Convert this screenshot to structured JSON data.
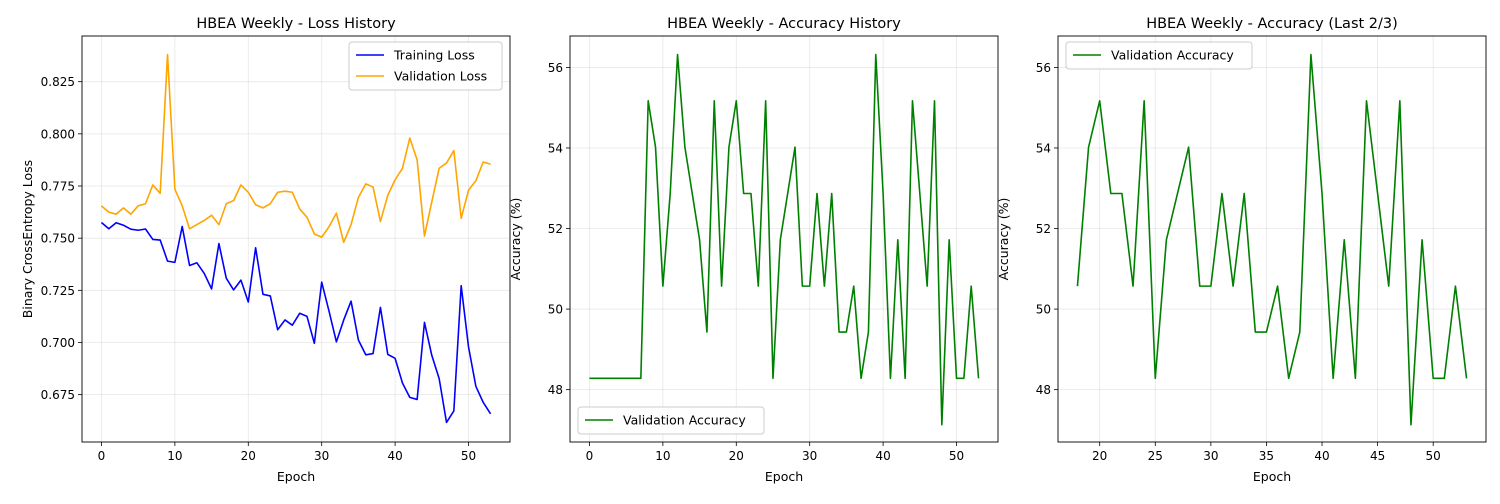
{
  "chart_data": [
    {
      "type": "line",
      "title": "HBEA Weekly - Loss History",
      "xlabel": "Epoch",
      "ylabel": "Binary CrossEntropy Loss",
      "xlim": [
        -2.65,
        55.65
      ],
      "ylim": [
        0.6523,
        0.8469
      ],
      "xticks": [
        0,
        10,
        20,
        30,
        40,
        50
      ],
      "xtick_labels": [
        "0",
        "10",
        "20",
        "30",
        "40",
        "50"
      ],
      "yticks": [
        0.675,
        0.7,
        0.725,
        0.75,
        0.775,
        0.8,
        0.825
      ],
      "ytick_labels": [
        "0.675",
        "0.700",
        "0.725",
        "0.750",
        "0.775",
        "0.800",
        "0.825"
      ],
      "grid": true,
      "legend_position": "upper right",
      "series": [
        {
          "name": "Training Loss",
          "color": "#0000ff",
          "x": [
            0,
            1,
            2,
            3,
            4,
            5,
            6,
            7,
            8,
            9,
            10,
            11,
            12,
            13,
            14,
            15,
            16,
            17,
            18,
            19,
            20,
            21,
            22,
            23,
            24,
            25,
            26,
            27,
            28,
            29,
            30,
            31,
            32,
            33,
            34,
            35,
            36,
            37,
            38,
            39,
            40,
            41,
            42,
            43,
            44,
            45,
            46,
            47,
            48,
            49,
            50,
            51,
            52,
            53
          ],
          "values": [
            0.7575,
            0.7545,
            0.7574,
            0.7562,
            0.7543,
            0.7538,
            0.7544,
            0.7494,
            0.7491,
            0.739,
            0.7384,
            0.7556,
            0.7369,
            0.7382,
            0.7331,
            0.7257,
            0.7474,
            0.7308,
            0.7252,
            0.7299,
            0.7194,
            0.7454,
            0.7231,
            0.7223,
            0.7061,
            0.7108,
            0.7083,
            0.714,
            0.7125,
            0.6996,
            0.7289,
            0.715,
            0.7003,
            0.7108,
            0.7198,
            0.7012,
            0.6941,
            0.6947,
            0.7168,
            0.6943,
            0.6924,
            0.6806,
            0.6737,
            0.6727,
            0.7096,
            0.6938,
            0.6827,
            0.6617,
            0.6672,
            0.7272,
            0.6979,
            0.679,
            0.6713,
            0.6658
          ]
        },
        {
          "name": "Validation Loss",
          "color": "#ffa500",
          "x": [
            0,
            1,
            2,
            3,
            4,
            5,
            6,
            7,
            8,
            9,
            10,
            11,
            12,
            13,
            14,
            15,
            16,
            17,
            18,
            19,
            20,
            21,
            22,
            23,
            24,
            25,
            26,
            27,
            28,
            29,
            30,
            31,
            32,
            33,
            34,
            35,
            36,
            37,
            38,
            39,
            40,
            41,
            42,
            43,
            44,
            45,
            46,
            47,
            48,
            49,
            50,
            51,
            52,
            53
          ],
          "values": [
            0.7655,
            0.7625,
            0.7615,
            0.7645,
            0.7615,
            0.7655,
            0.7665,
            0.7755,
            0.7715,
            0.838,
            0.7735,
            0.7655,
            0.7545,
            0.7565,
            0.7585,
            0.761,
            0.7565,
            0.7665,
            0.768,
            0.7755,
            0.772,
            0.766,
            0.7645,
            0.7665,
            0.772,
            0.7725,
            0.772,
            0.764,
            0.76,
            0.752,
            0.7505,
            0.7555,
            0.762,
            0.748,
            0.7565,
            0.7695,
            0.776,
            0.7745,
            0.758,
            0.7705,
            0.778,
            0.7835,
            0.798,
            0.7875,
            0.751,
            0.7675,
            0.7835,
            0.786,
            0.792,
            0.7595,
            0.773,
            0.7775,
            0.7865,
            0.7855
          ]
        }
      ]
    },
    {
      "type": "line",
      "title": "HBEA Weekly - Accuracy History",
      "xlabel": "Epoch",
      "ylabel": "Accuracy (%)",
      "xlim": [
        -2.65,
        55.65
      ],
      "ylim": [
        46.7,
        56.78
      ],
      "xticks": [
        0,
        10,
        20,
        30,
        40,
        50
      ],
      "xtick_labels": [
        "0",
        "10",
        "20",
        "30",
        "40",
        "50"
      ],
      "yticks": [
        48,
        50,
        52,
        54,
        56
      ],
      "ytick_labels": [
        "48",
        "50",
        "52",
        "54",
        "56"
      ],
      "grid": true,
      "legend_position": "lower left",
      "series": [
        {
          "name": "Validation Accuracy",
          "color": "#008000",
          "x": [
            0,
            1,
            2,
            3,
            4,
            5,
            6,
            7,
            8,
            9,
            10,
            11,
            12,
            13,
            14,
            15,
            16,
            17,
            18,
            19,
            20,
            21,
            22,
            23,
            24,
            25,
            26,
            27,
            28,
            29,
            30,
            31,
            32,
            33,
            34,
            35,
            36,
            37,
            38,
            39,
            40,
            41,
            42,
            43,
            44,
            45,
            46,
            47,
            48,
            49,
            50,
            51,
            52,
            53
          ],
          "values": [
            48.28,
            48.28,
            48.28,
            48.28,
            48.28,
            48.28,
            48.28,
            48.28,
            55.17,
            54.02,
            50.57,
            52.87,
            56.32,
            54.02,
            52.87,
            51.72,
            49.43,
            55.17,
            50.57,
            54.02,
            55.17,
            52.87,
            52.87,
            50.57,
            55.17,
            48.28,
            51.72,
            52.87,
            54.02,
            50.57,
            50.57,
            52.87,
            50.57,
            52.87,
            49.43,
            49.43,
            50.57,
            48.28,
            49.43,
            56.32,
            52.87,
            48.28,
            51.72,
            48.28,
            55.17,
            52.87,
            50.57,
            55.17,
            47.13,
            51.72,
            48.28,
            48.28,
            50.57,
            48.28
          ]
        }
      ]
    },
    {
      "type": "line",
      "title": "HBEA Weekly - Accuracy (Last 2/3)",
      "xlabel": "Epoch",
      "ylabel": "Accuracy (%)",
      "xlim": [
        16.25,
        54.75
      ],
      "ylim": [
        46.7,
        56.78
      ],
      "xticks": [
        20,
        25,
        30,
        35,
        40,
        45,
        50
      ],
      "xtick_labels": [
        "20",
        "25",
        "30",
        "35",
        "40",
        "45",
        "50"
      ],
      "yticks": [
        48,
        50,
        52,
        54,
        56
      ],
      "ytick_labels": [
        "48",
        "50",
        "52",
        "54",
        "56"
      ],
      "grid": true,
      "legend_position": "upper left",
      "series": [
        {
          "name": "Validation Accuracy",
          "color": "#008000",
          "x": [
            18,
            19,
            20,
            21,
            22,
            23,
            24,
            25,
            26,
            27,
            28,
            29,
            30,
            31,
            32,
            33,
            34,
            35,
            36,
            37,
            38,
            39,
            40,
            41,
            42,
            43,
            44,
            45,
            46,
            47,
            48,
            49,
            50,
            51,
            52,
            53
          ],
          "values": [
            50.57,
            54.02,
            55.17,
            52.87,
            52.87,
            50.57,
            55.17,
            48.28,
            51.72,
            52.87,
            54.02,
            50.57,
            50.57,
            52.87,
            50.57,
            52.87,
            49.43,
            49.43,
            50.57,
            48.28,
            49.43,
            56.32,
            52.87,
            48.28,
            51.72,
            48.28,
            55.17,
            52.87,
            50.57,
            55.17,
            47.13,
            51.72,
            48.28,
            48.28,
            50.57,
            48.28
          ]
        }
      ]
    }
  ]
}
